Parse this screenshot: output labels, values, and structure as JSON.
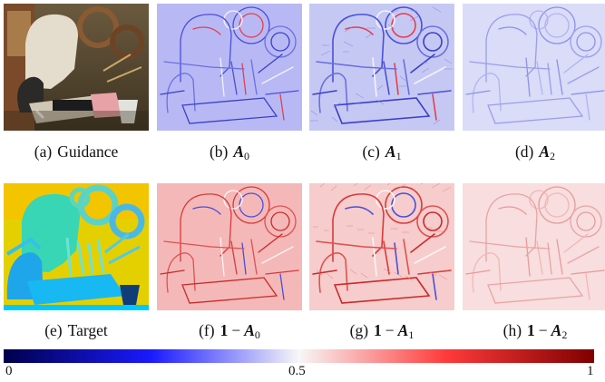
{
  "figure": {
    "panels": [
      {
        "id": "a",
        "label": "(a)",
        "text": "Guidance",
        "kind": "photo"
      },
      {
        "id": "b",
        "label": "(b)",
        "math": "A",
        "sub": "0",
        "kind": "low"
      },
      {
        "id": "c",
        "label": "(c)",
        "math": "A",
        "sub": "1",
        "kind": "low"
      },
      {
        "id": "d",
        "label": "(d)",
        "math": "A",
        "sub": "2",
        "kind": "low"
      },
      {
        "id": "e",
        "label": "(e)",
        "text": "Target",
        "kind": "depth"
      },
      {
        "id": "f",
        "label": "(f)",
        "one": "1",
        "op": "−",
        "math": "A",
        "sub": "0",
        "kind": "high"
      },
      {
        "id": "g",
        "label": "(g)",
        "one": "1",
        "op": "−",
        "math": "A",
        "sub": "1",
        "kind": "high"
      },
      {
        "id": "h",
        "label": "(h)",
        "one": "1",
        "op": "−",
        "math": "A",
        "sub": "2",
        "kind": "high"
      }
    ]
  },
  "colorbar": {
    "min_label": "0",
    "mid_label": "0.5",
    "max_label": "1",
    "colors": {
      "low": "#00004c",
      "mid": "#f7f7f7",
      "high": "#7f0000"
    }
  }
}
